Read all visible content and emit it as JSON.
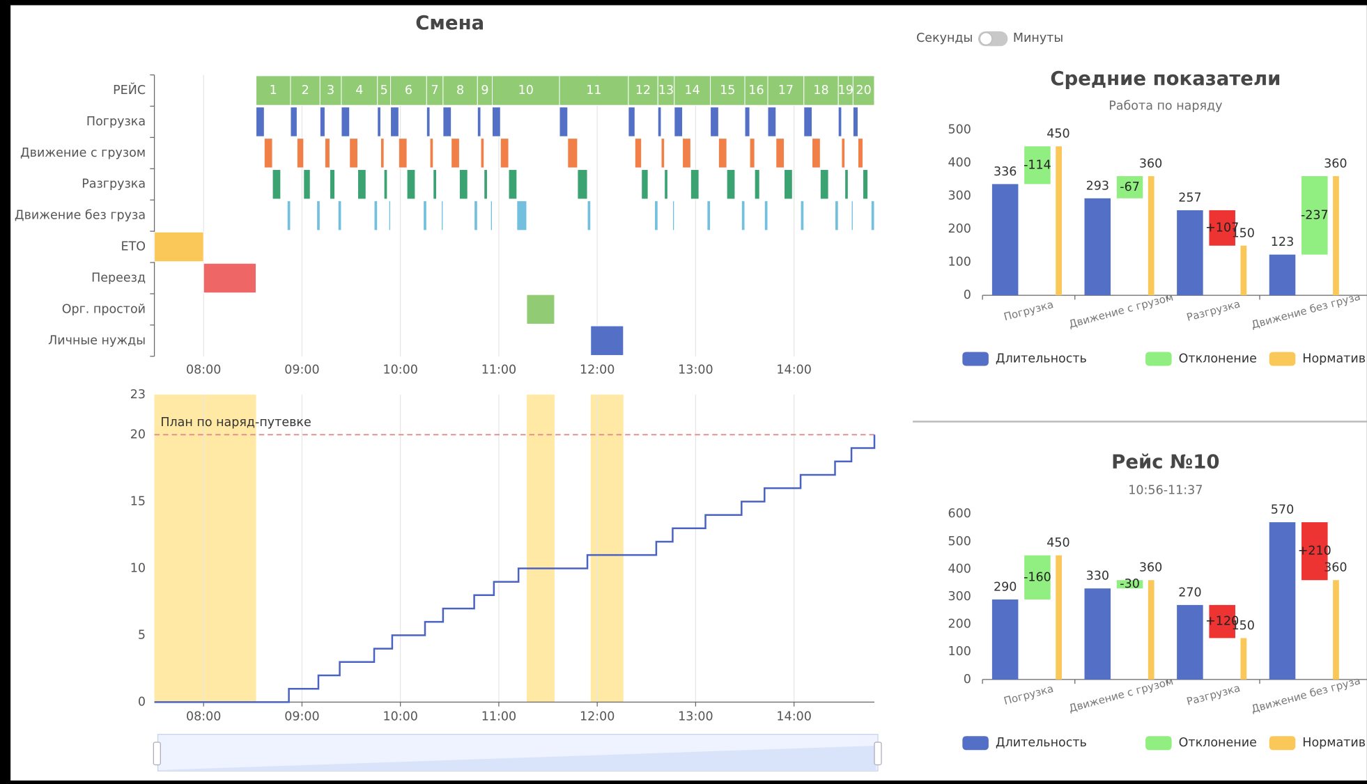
{
  "controls": {
    "left_label": "Секунды",
    "right_label": "Минуты"
  },
  "chart_data": [
    {
      "type": "gantt",
      "title": "Смена",
      "categories": [
        "РЕЙС",
        "Погрузка",
        "Движение с грузом",
        "Разгрузка",
        "Движение без груза",
        "ЕТО",
        "Переезд",
        "Орг. простой",
        "Личные нужды"
      ],
      "xlim": [
        450,
        889
      ],
      "xticks": [
        {
          "value": 480,
          "label": "08:00"
        },
        {
          "value": 540,
          "label": "09:00"
        },
        {
          "value": 600,
          "label": "10:00"
        },
        {
          "value": 660,
          "label": "11:00"
        },
        {
          "value": 720,
          "label": "12:00"
        },
        {
          "value": 780,
          "label": "13:00"
        },
        {
          "value": 840,
          "label": "14:00"
        }
      ],
      "grid": true,
      "rows": [
        {
          "color": "#91cc75",
          "labels": [
            1,
            2,
            3,
            4,
            5,
            6,
            7,
            8,
            9,
            10,
            11,
            12,
            13,
            14,
            15,
            16,
            17,
            18,
            19,
            20
          ],
          "tasks": [
            [
              512,
              533
            ],
            [
              533,
              551
            ],
            [
              551,
              564
            ],
            [
              564,
              586
            ],
            [
              586,
              594
            ],
            [
              594,
              616
            ],
            [
              616,
              626
            ],
            [
              626,
              647
            ],
            [
              647,
              656
            ],
            [
              656,
              697
            ],
            [
              697,
              739
            ],
            [
              739,
              757
            ],
            [
              757,
              767
            ],
            [
              767,
              789
            ],
            [
              789,
              810
            ],
            [
              810,
              824
            ],
            [
              824,
              846
            ],
            [
              846,
              867
            ],
            [
              867,
              876
            ],
            [
              876,
              889
            ]
          ]
        },
        {
          "color": "#5470c6",
          "tasks": [
            [
              512,
              517
            ],
            [
              533,
              537
            ],
            [
              551,
              554
            ],
            [
              564,
              569
            ],
            [
              586,
              588
            ],
            [
              594,
              599
            ],
            [
              616,
              618
            ],
            [
              626,
              631
            ],
            [
              647,
              649
            ],
            [
              656,
              661
            ],
            [
              697,
              702
            ],
            [
              739,
              743
            ],
            [
              757,
              759
            ],
            [
              767,
              772
            ],
            [
              789,
              794
            ],
            [
              810,
              813
            ],
            [
              824,
              829
            ],
            [
              846,
              851
            ],
            [
              867,
              869
            ],
            [
              876,
              879
            ]
          ]
        },
        {
          "color": "#f08048",
          "tasks": [
            [
              517,
              522
            ],
            [
              537,
              541
            ],
            [
              554,
              557
            ],
            [
              569,
              574
            ],
            [
              588,
              590
            ],
            [
              599,
              604
            ],
            [
              618,
              620
            ],
            [
              631,
              636
            ],
            [
              649,
              651
            ],
            [
              661,
              666
            ],
            [
              702,
              708
            ],
            [
              743,
              747
            ],
            [
              759,
              761
            ],
            [
              772,
              777
            ],
            [
              794,
              799
            ],
            [
              813,
              816
            ],
            [
              829,
              834
            ],
            [
              851,
              856
            ],
            [
              869,
              871
            ],
            [
              879,
              882
            ]
          ]
        },
        {
          "color": "#3ba272",
          "tasks": [
            [
              522,
              527
            ],
            [
              541,
              545
            ],
            [
              557,
              560
            ],
            [
              574,
              579
            ],
            [
              590,
              592
            ],
            [
              604,
              609
            ],
            [
              620,
              622
            ],
            [
              636,
              641
            ],
            [
              651,
              653
            ],
            [
              666,
              671
            ],
            [
              708,
              714
            ],
            [
              747,
              751
            ],
            [
              761,
              763
            ],
            [
              777,
              782
            ],
            [
              799,
              804
            ],
            [
              816,
              819
            ],
            [
              834,
              839
            ],
            [
              856,
              861
            ],
            [
              871,
              873
            ],
            [
              882,
              885
            ]
          ]
        },
        {
          "color": "#73c0de",
          "tasks": [
            [
              531,
              533
            ],
            [
              549,
              551
            ],
            [
              562,
              564
            ],
            [
              584,
              586
            ],
            [
              593,
              594
            ],
            [
              614,
              616
            ],
            [
              625,
              626
            ],
            [
              645,
              647
            ],
            [
              655,
              656
            ],
            [
              671,
              677
            ],
            [
              714,
              716
            ],
            [
              755,
              757
            ],
            [
              766,
              767
            ],
            [
              787,
              789
            ],
            [
              808,
              810
            ],
            [
              822,
              824
            ],
            [
              844,
              846
            ],
            [
              865,
              867
            ],
            [
              875,
              876
            ],
            [
              887,
              889
            ]
          ]
        },
        {
          "color": "#fac858",
          "tasks": [
            [
              450,
              480
            ]
          ]
        },
        {
          "color": "#ee6666",
          "tasks": [
            [
              480,
              512
            ]
          ]
        },
        {
          "color": "#91cc75",
          "tasks": [
            [
              677,
              694
            ]
          ]
        },
        {
          "color": "#5470c6",
          "tasks": [
            [
              716,
              736
            ]
          ]
        }
      ]
    },
    {
      "type": "step-line",
      "xlim": [
        450,
        889
      ],
      "xticks": [
        {
          "value": 480,
          "label": "08:00"
        },
        {
          "value": 540,
          "label": "09:00"
        },
        {
          "value": 600,
          "label": "10:00"
        },
        {
          "value": 660,
          "label": "11:00"
        },
        {
          "value": 720,
          "label": "12:00"
        },
        {
          "value": 780,
          "label": "13:00"
        },
        {
          "value": 840,
          "label": "14:00"
        }
      ],
      "ylim": [
        0,
        23
      ],
      "yticks": [
        0,
        5,
        10,
        15,
        20,
        23
      ],
      "grid": true,
      "x": [
        450,
        532,
        550,
        563,
        584,
        595,
        615,
        626,
        645,
        657,
        672,
        714,
        756,
        766,
        786,
        808,
        822,
        844,
        865,
        875,
        889
      ],
      "series": [
        {
          "color": "#4a62c0",
          "values": [
            0,
            1,
            2,
            3,
            4,
            5,
            6,
            7,
            8,
            9,
            10,
            11,
            12,
            13,
            14,
            15,
            16,
            17,
            18,
            19,
            20
          ]
        }
      ],
      "plan": {
        "value": 20,
        "label": "План по наряд-путевке",
        "color": "#e08a8a"
      },
      "bands": [
        [
          450,
          512
        ],
        [
          677,
          694
        ],
        [
          716,
          736
        ]
      ],
      "band_color": "#ffe79a"
    },
    {
      "type": "bar-deviation",
      "title": "Средние показатели",
      "subtitle": "Работа по наряду",
      "categories": [
        "Погрузка",
        "Движение с грузом",
        "Разгрузка",
        "Движение без груза"
      ],
      "ylim": [
        0,
        500
      ],
      "yticks": [
        0,
        100,
        200,
        300,
        400,
        500
      ],
      "positive_color": "#ee3333",
      "series": [
        {
          "name": "Длительность",
          "color": "#5470c6",
          "values": [
            336,
            293,
            257,
            123
          ]
        },
        {
          "name": "Отклонение",
          "color": "#91ee80",
          "values": [
            -114,
            -67,
            107,
            -237
          ],
          "value_labels": [
            "-114",
            "-67",
            "+107",
            "-237"
          ]
        },
        {
          "name": "Норматив",
          "color": "#fac858",
          "values": [
            450,
            360,
            150,
            360
          ]
        }
      ]
    },
    {
      "type": "bar-deviation",
      "title": "Рейс №10",
      "subtitle": "10:56-11:37",
      "categories": [
        "Погрузка",
        "Движение с грузом",
        "Разгрузка",
        "Движение без груза"
      ],
      "ylim": [
        0,
        600
      ],
      "yticks": [
        0,
        100,
        200,
        300,
        400,
        500,
        600
      ],
      "positive_color": "#ee3333",
      "series": [
        {
          "name": "Длительность",
          "color": "#5470c6",
          "values": [
            290,
            330,
            270,
            570
          ]
        },
        {
          "name": "Отклонение",
          "color": "#91ee80",
          "values": [
            -160,
            -30,
            120,
            210
          ],
          "value_labels": [
            "-160",
            "-30",
            "+120",
            "+210"
          ]
        },
        {
          "name": "Норматив",
          "color": "#fac858",
          "values": [
            450,
            360,
            150,
            360
          ]
        }
      ]
    }
  ]
}
